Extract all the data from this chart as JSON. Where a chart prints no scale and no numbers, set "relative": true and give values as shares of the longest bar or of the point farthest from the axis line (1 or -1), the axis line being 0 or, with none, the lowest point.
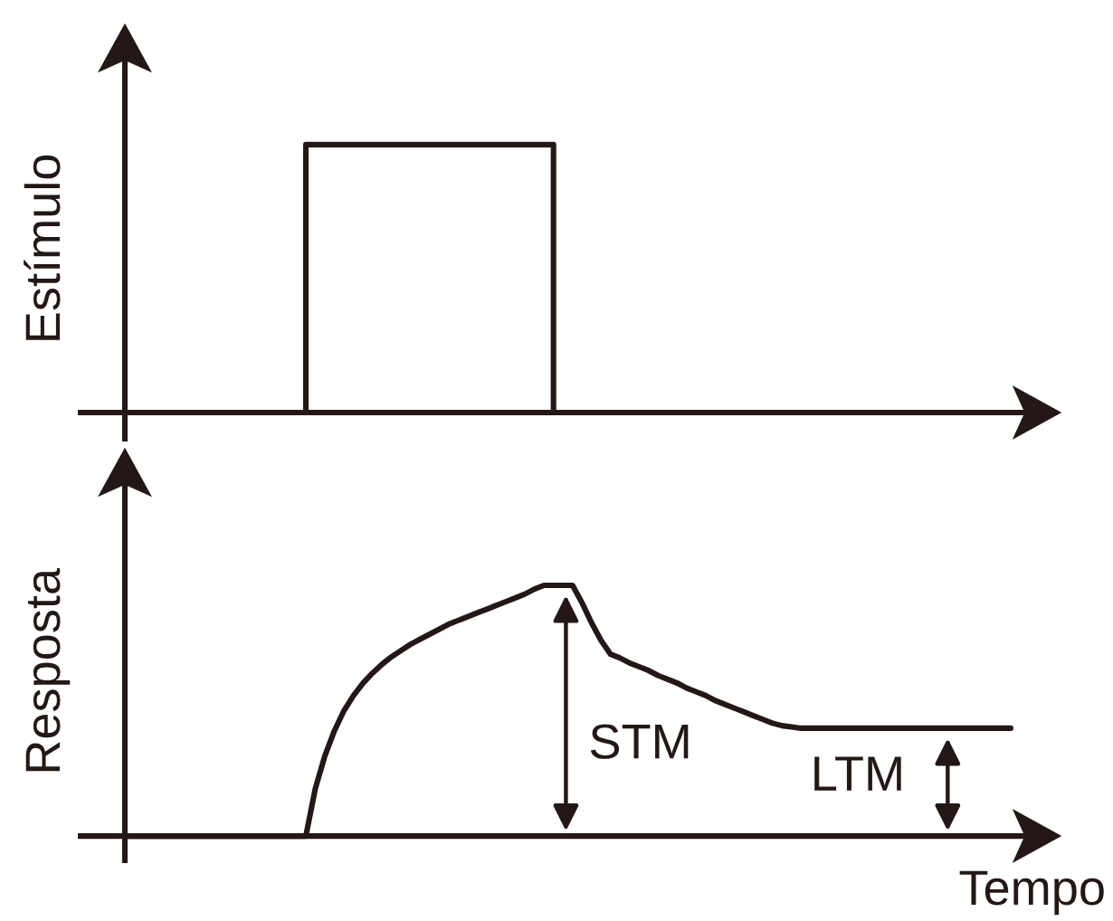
{
  "chart_data": [
    {
      "type": "step",
      "ylabel": "Estímulo",
      "relative": true,
      "color": "#231815",
      "categories": [
        null,
        null,
        null,
        null,
        null,
        null,
        null,
        null,
        null,
        null,
        null,
        null,
        null,
        null,
        null,
        null,
        null,
        null,
        null,
        null,
        null,
        null,
        null,
        null,
        null,
        null,
        null,
        null,
        null,
        null,
        null,
        null,
        null,
        null,
        null,
        null,
        null,
        null,
        null,
        null,
        null,
        null,
        null,
        null,
        null,
        null,
        null,
        null,
        null,
        null,
        null,
        null,
        null,
        null,
        null,
        null,
        null,
        null,
        null,
        null,
        null,
        null,
        null,
        null,
        null,
        null,
        null,
        null,
        null,
        null,
        null,
        null,
        null,
        null,
        null,
        null,
        null,
        null,
        null,
        null,
        null,
        null,
        null,
        null,
        null,
        null,
        null,
        null,
        null,
        null,
        null,
        null,
        null,
        null
      ],
      "values": [
        0,
        0,
        0,
        0,
        0,
        0,
        0,
        0,
        0,
        0,
        0,
        0,
        0,
        0,
        0,
        0,
        0,
        0,
        0,
        1,
        1,
        1,
        1,
        1,
        1,
        1,
        1,
        1,
        1,
        1,
        1,
        1,
        1,
        1,
        1,
        1,
        1,
        1,
        1,
        1,
        1,
        1,
        1,
        1,
        1,
        0,
        0,
        0,
        0,
        0,
        0,
        0,
        0,
        0,
        0,
        0,
        0,
        0,
        0,
        0,
        0,
        0,
        0,
        0,
        0,
        0,
        0,
        0,
        0,
        0,
        0,
        0,
        0,
        0,
        0,
        0,
        0,
        0,
        0,
        0,
        0,
        0,
        0,
        0,
        0,
        0,
        0,
        0,
        0,
        0,
        0,
        0,
        0,
        0
      ]
    },
    {
      "type": "line",
      "ylabel": "Resposta",
      "xlabel": "Tempo",
      "relative": true,
      "color": "#231815",
      "categories": [
        null,
        null,
        null,
        null,
        null,
        null,
        null,
        null,
        null,
        null,
        null,
        null,
        null,
        null,
        null,
        null,
        null,
        null,
        null,
        null,
        null,
        null,
        null,
        null,
        null,
        null,
        null,
        null,
        null,
        null,
        null,
        null,
        null,
        null,
        null,
        null,
        null,
        null,
        null,
        null,
        null,
        null,
        null,
        null,
        null,
        null,
        null,
        null,
        null,
        null,
        null,
        null,
        null,
        null,
        null,
        null,
        null,
        null,
        null,
        null,
        null,
        null,
        null,
        null,
        null,
        null,
        null,
        null,
        null,
        null,
        null,
        null,
        null,
        null,
        null,
        null,
        null,
        null,
        null,
        null,
        null,
        null,
        null,
        null,
        null,
        null,
        null,
        null,
        null,
        null,
        null,
        null,
        null,
        null
      ],
      "values": [
        0,
        0,
        0,
        0,
        0,
        0,
        0,
        0,
        0,
        0,
        0,
        0,
        0,
        0,
        0,
        0,
        0,
        0,
        0,
        0,
        0.19,
        0.32,
        0.42,
        0.5,
        0.56,
        0.61,
        0.65,
        0.685,
        0.715,
        0.74,
        0.765,
        0.785,
        0.805,
        0.825,
        0.845,
        0.86,
        0.875,
        0.89,
        0.905,
        0.92,
        0.935,
        0.95,
        0.965,
        0.985,
        1,
        1,
        1,
        1,
        0.93,
        0.85,
        0.78,
        0.725,
        0.71,
        0.69,
        0.675,
        0.66,
        0.64,
        0.625,
        0.61,
        0.59,
        0.575,
        0.56,
        0.54,
        0.525,
        0.51,
        0.495,
        0.48,
        0.465,
        0.45,
        0.44,
        0.435,
        0.43,
        0.43,
        0.43,
        0.43,
        0.43,
        0.43,
        0.43,
        0.43,
        0.43,
        0.43,
        0.43,
        0.43,
        0.43,
        0.43,
        0.43,
        0.43,
        0.43,
        0.43,
        0.43,
        0.43,
        0.43,
        0.43,
        0.43
      ],
      "annotations": [
        "STM",
        "LTM"
      ]
    }
  ]
}
